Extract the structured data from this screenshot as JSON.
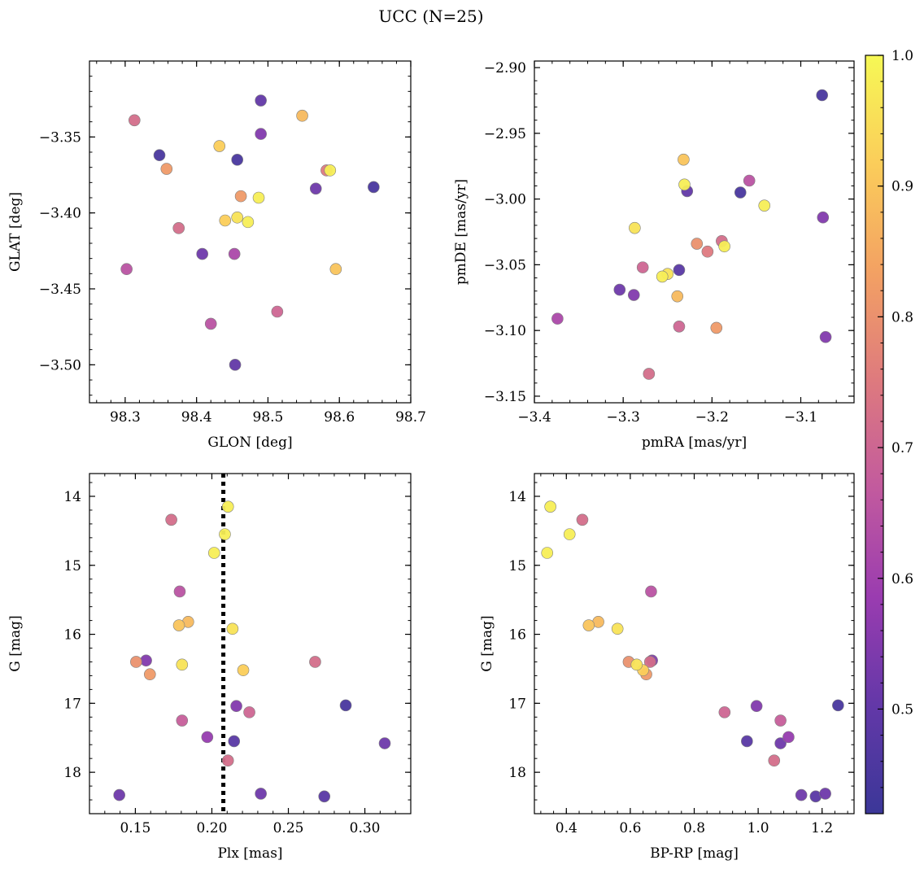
{
  "figure": {
    "title": "UCC (N=25)"
  },
  "colors": {
    "colormap": "plasma",
    "stops": [
      "#3b3798",
      "#6338a8",
      "#9a3cb0",
      "#c25a9e",
      "#de7a7e",
      "#f3a163",
      "#fbcd5a",
      "#f6f855"
    ],
    "marker_edge": "#7f7f7f",
    "vline": "#000000"
  },
  "colorbar": {
    "range": [
      0.42,
      1.0
    ],
    "ticks": [
      0.5,
      0.6,
      0.7,
      0.8,
      0.9,
      1.0
    ],
    "tick_labels": [
      "0.5",
      "0.6",
      "0.7",
      "0.8",
      "0.9",
      "1.0"
    ]
  },
  "chart_data": [
    {
      "type": "scatter",
      "xlabel": "GLON [deg]",
      "ylabel": "GLAT [deg]",
      "xlim": [
        98.25,
        98.7
      ],
      "ylim": [
        -3.525,
        -3.3
      ],
      "xticks": [
        98.3,
        98.4,
        98.5,
        98.6,
        98.7
      ],
      "xtick_labels": [
        "98.3",
        "98.4",
        "98.5",
        "98.6",
        "98.7"
      ],
      "yticks": [
        -3.5,
        -3.45,
        -3.4,
        -3.35
      ],
      "ytick_labels": [
        "−3.50",
        "−3.45",
        "−3.40",
        "−3.35"
      ],
      "points": [
        {
          "x": 98.49,
          "y": -3.326,
          "c": 0.5
        },
        {
          "x": 98.548,
          "y": -3.336,
          "c": 0.88
        },
        {
          "x": 98.313,
          "y": -3.339,
          "c": 0.72
        },
        {
          "x": 98.49,
          "y": -3.348,
          "c": 0.55
        },
        {
          "x": 98.432,
          "y": -3.356,
          "c": 0.92
        },
        {
          "x": 98.348,
          "y": -3.362,
          "c": 0.45
        },
        {
          "x": 98.457,
          "y": -3.365,
          "c": 0.45
        },
        {
          "x": 98.358,
          "y": -3.371,
          "c": 0.82
        },
        {
          "x": 98.582,
          "y": -3.372,
          "c": 0.75
        },
        {
          "x": 98.587,
          "y": -3.372,
          "c": 0.98
        },
        {
          "x": 98.567,
          "y": -3.384,
          "c": 0.52
        },
        {
          "x": 98.648,
          "y": -3.383,
          "c": 0.45
        },
        {
          "x": 98.462,
          "y": -3.389,
          "c": 0.82
        },
        {
          "x": 98.487,
          "y": -3.39,
          "c": 0.98
        },
        {
          "x": 98.457,
          "y": -3.403,
          "c": 0.96
        },
        {
          "x": 98.44,
          "y": -3.405,
          "c": 0.92
        },
        {
          "x": 98.472,
          "y": -3.406,
          "c": 0.98
        },
        {
          "x": 98.375,
          "y": -3.41,
          "c": 0.72
        },
        {
          "x": 98.408,
          "y": -3.427,
          "c": 0.52
        },
        {
          "x": 98.453,
          "y": -3.427,
          "c": 0.62
        },
        {
          "x": 98.302,
          "y": -3.437,
          "c": 0.65
        },
        {
          "x": 98.595,
          "y": -3.437,
          "c": 0.9
        },
        {
          "x": 98.513,
          "y": -3.465,
          "c": 0.7
        },
        {
          "x": 98.42,
          "y": -3.473,
          "c": 0.65
        },
        {
          "x": 98.454,
          "y": -3.5,
          "c": 0.5
        }
      ]
    },
    {
      "type": "scatter",
      "xlabel": "pmRA [mas/yr]",
      "ylabel": "pmDE [mas/yr]",
      "xlim": [
        -3.4,
        -3.04
      ],
      "ylim": [
        -3.155,
        -2.895
      ],
      "xticks": [
        -3.4,
        -3.3,
        -3.2,
        -3.1
      ],
      "xtick_labels": [
        "−3.4",
        "−3.3",
        "−3.2",
        "−3.1"
      ],
      "yticks": [
        -3.15,
        -3.1,
        -3.05,
        -3.0,
        -2.95,
        -2.9
      ],
      "ytick_labels": [
        "−3.15",
        "−3.10",
        "−3.05",
        "−3.00",
        "−2.95",
        "−2.90"
      ],
      "points": [
        {
          "x": -3.076,
          "y": -2.921,
          "c": 0.45
        },
        {
          "x": -3.232,
          "y": -2.97,
          "c": 0.9
        },
        {
          "x": -3.231,
          "y": -2.989,
          "c": 0.98
        },
        {
          "x": -3.158,
          "y": -2.986,
          "c": 0.65
        },
        {
          "x": -3.228,
          "y": -2.994,
          "c": 0.5
        },
        {
          "x": -3.168,
          "y": -2.995,
          "c": 0.45
        },
        {
          "x": -3.141,
          "y": -3.005,
          "c": 0.98
        },
        {
          "x": -3.075,
          "y": -3.014,
          "c": 0.55
        },
        {
          "x": -3.287,
          "y": -3.022,
          "c": 0.96
        },
        {
          "x": -3.217,
          "y": -3.034,
          "c": 0.8
        },
        {
          "x": -3.189,
          "y": -3.032,
          "c": 0.72
        },
        {
          "x": -3.186,
          "y": -3.036,
          "c": 0.98
        },
        {
          "x": -3.205,
          "y": -3.04,
          "c": 0.75
        },
        {
          "x": -3.278,
          "y": -3.052,
          "c": 0.7
        },
        {
          "x": -3.237,
          "y": -3.054,
          "c": 0.48
        },
        {
          "x": -3.25,
          "y": -3.057,
          "c": 0.96
        },
        {
          "x": -3.256,
          "y": -3.059,
          "c": 0.98
        },
        {
          "x": -3.304,
          "y": -3.069,
          "c": 0.52
        },
        {
          "x": -3.288,
          "y": -3.073,
          "c": 0.55
        },
        {
          "x": -3.239,
          "y": -3.074,
          "c": 0.88
        },
        {
          "x": -3.374,
          "y": -3.091,
          "c": 0.62
        },
        {
          "x": -3.237,
          "y": -3.097,
          "c": 0.7
        },
        {
          "x": -3.195,
          "y": -3.098,
          "c": 0.82
        },
        {
          "x": -3.072,
          "y": -3.105,
          "c": 0.55
        },
        {
          "x": -3.271,
          "y": -3.133,
          "c": 0.72
        }
      ]
    },
    {
      "type": "scatter",
      "xlabel": "Plx [mas]",
      "ylabel": "G [mag]",
      "xlim": [
        0.12,
        0.33
      ],
      "ylim": [
        18.6,
        13.67
      ],
      "y_inverted": true,
      "xticks": [
        0.15,
        0.2,
        0.25,
        0.3
      ],
      "xtick_labels": [
        "0.15",
        "0.20",
        "0.25",
        "0.30"
      ],
      "yticks": [
        14,
        15,
        16,
        17,
        18
      ],
      "ytick_labels": [
        "14",
        "15",
        "16",
        "17",
        "18"
      ],
      "vline": {
        "x": 0.2075,
        "style": "dotted"
      },
      "points": [
        {
          "x": 0.2105,
          "y": 14.15,
          "c": 0.98
        },
        {
          "x": 0.1735,
          "y": 14.34,
          "c": 0.72
        },
        {
          "x": 0.2085,
          "y": 14.55,
          "c": 0.98
        },
        {
          "x": 0.2015,
          "y": 14.82,
          "c": 0.98
        },
        {
          "x": 0.179,
          "y": 15.38,
          "c": 0.65
        },
        {
          "x": 0.1845,
          "y": 15.82,
          "c": 0.88
        },
        {
          "x": 0.1785,
          "y": 15.87,
          "c": 0.9
        },
        {
          "x": 0.2135,
          "y": 15.92,
          "c": 0.96
        },
        {
          "x": 0.1505,
          "y": 16.4,
          "c": 0.8
        },
        {
          "x": 0.157,
          "y": 16.38,
          "c": 0.55
        },
        {
          "x": 0.2675,
          "y": 16.4,
          "c": 0.72
        },
        {
          "x": 0.1805,
          "y": 16.44,
          "c": 0.96
        },
        {
          "x": 0.2205,
          "y": 16.52,
          "c": 0.92
        },
        {
          "x": 0.1595,
          "y": 16.58,
          "c": 0.82
        },
        {
          "x": 0.2875,
          "y": 17.03,
          "c": 0.45
        },
        {
          "x": 0.216,
          "y": 17.04,
          "c": 0.55
        },
        {
          "x": 0.2245,
          "y": 17.13,
          "c": 0.7
        },
        {
          "x": 0.1805,
          "y": 17.25,
          "c": 0.68
        },
        {
          "x": 0.197,
          "y": 17.49,
          "c": 0.58
        },
        {
          "x": 0.2145,
          "y": 17.55,
          "c": 0.48
        },
        {
          "x": 0.313,
          "y": 17.58,
          "c": 0.52
        },
        {
          "x": 0.2105,
          "y": 17.83,
          "c": 0.72
        },
        {
          "x": 0.1395,
          "y": 18.33,
          "c": 0.52
        },
        {
          "x": 0.232,
          "y": 18.31,
          "c": 0.52
        },
        {
          "x": 0.2735,
          "y": 18.35,
          "c": 0.48
        }
      ]
    },
    {
      "type": "scatter",
      "xlabel": "BP-RP [mag]",
      "ylabel": "G [mag]",
      "xlim": [
        0.3,
        1.3
      ],
      "ylim": [
        18.6,
        13.67
      ],
      "y_inverted": true,
      "xticks": [
        0.4,
        0.6,
        0.8,
        1.0,
        1.2
      ],
      "xtick_labels": [
        "0.4",
        "0.6",
        "0.8",
        "1.0",
        "1.2"
      ],
      "yticks": [
        14,
        15,
        16,
        17,
        18
      ],
      "ytick_labels": [
        "14",
        "15",
        "16",
        "17",
        "18"
      ],
      "points": [
        {
          "x": 0.35,
          "y": 14.15,
          "c": 0.98
        },
        {
          "x": 0.45,
          "y": 14.34,
          "c": 0.72
        },
        {
          "x": 0.41,
          "y": 14.55,
          "c": 0.98
        },
        {
          "x": 0.34,
          "y": 14.82,
          "c": 0.98
        },
        {
          "x": 0.665,
          "y": 15.38,
          "c": 0.65
        },
        {
          "x": 0.5,
          "y": 15.82,
          "c": 0.88
        },
        {
          "x": 0.47,
          "y": 15.87,
          "c": 0.9
        },
        {
          "x": 0.56,
          "y": 15.92,
          "c": 0.96
        },
        {
          "x": 0.595,
          "y": 16.4,
          "c": 0.8
        },
        {
          "x": 0.668,
          "y": 16.38,
          "c": 0.55
        },
        {
          "x": 0.662,
          "y": 16.4,
          "c": 0.72
        },
        {
          "x": 0.62,
          "y": 16.44,
          "c": 0.96
        },
        {
          "x": 0.64,
          "y": 16.52,
          "c": 0.92
        },
        {
          "x": 0.65,
          "y": 16.58,
          "c": 0.82
        },
        {
          "x": 1.25,
          "y": 17.03,
          "c": 0.45
        },
        {
          "x": 0.995,
          "y": 17.04,
          "c": 0.55
        },
        {
          "x": 0.895,
          "y": 17.13,
          "c": 0.7
        },
        {
          "x": 1.07,
          "y": 17.25,
          "c": 0.68
        },
        {
          "x": 1.095,
          "y": 17.49,
          "c": 0.58
        },
        {
          "x": 0.965,
          "y": 17.55,
          "c": 0.48
        },
        {
          "x": 1.07,
          "y": 17.58,
          "c": 0.52
        },
        {
          "x": 1.05,
          "y": 17.83,
          "c": 0.72
        },
        {
          "x": 1.135,
          "y": 18.33,
          "c": 0.52
        },
        {
          "x": 1.21,
          "y": 18.31,
          "c": 0.52
        },
        {
          "x": 1.18,
          "y": 18.35,
          "c": 0.48
        }
      ]
    }
  ]
}
